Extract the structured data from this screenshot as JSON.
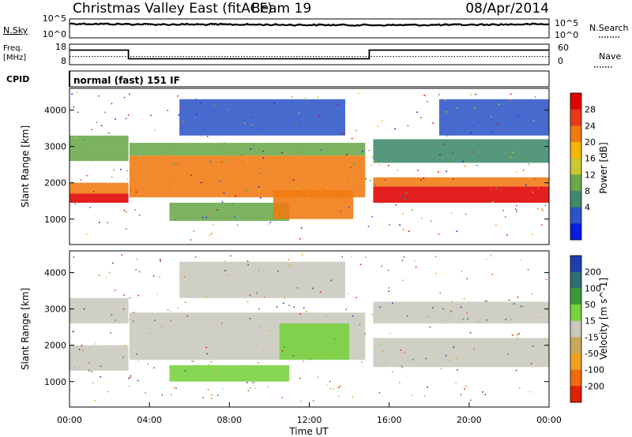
{
  "header": {
    "station": "Christmas Valley East (fitACF)",
    "beam": "Beam 19",
    "date": "08/Apr/2014"
  },
  "top_panels": {
    "nsky_label": "N.Sky",
    "nsearch_label": "N.Search",
    "noise_ticks_left": [
      "10^5",
      "10^0"
    ],
    "noise_ticks_right": [
      "10^5",
      "10^0"
    ],
    "freq_label_line1": "Freq.",
    "freq_label_line2": "[MHz]",
    "freq_ticks": [
      "18",
      "8"
    ],
    "nave_label": "Nave",
    "nave_ticks": [
      "60",
      "0"
    ],
    "cpid_label": "CPID",
    "cpid_value": "normal (fast) 151 IF"
  },
  "colors": {
    "power": [
      "#0a1ee0",
      "#2d55c8",
      "#3f8a6a",
      "#6aa84a",
      "#c8c832",
      "#f4b400",
      "#f07a10",
      "#e83a18",
      "#e00000"
    ],
    "velocity": [
      "#1f3fb0",
      "#2e6e6e",
      "#3a9a3a",
      "#78d23c",
      "#c8c8be",
      "#c9a85a",
      "#f0a020",
      "#f06a10",
      "#e02000"
    ]
  },
  "chart_data": [
    {
      "type": "line",
      "title": "N.Sky / N.Search",
      "x": [
        "00:00",
        "04:00",
        "08:00",
        "12:00",
        "16:00",
        "20:00",
        "00:00"
      ],
      "series": [
        {
          "name": "N.Sky",
          "values": [
            10000,
            6000,
            5500,
            4000,
            3500,
            4500,
            7000
          ]
        },
        {
          "name": "N.Search",
          "values": [
            6000,
            4000,
            3500,
            3000,
            2500,
            3000,
            5000
          ]
        }
      ],
      "yscale": "log"
    },
    {
      "type": "line",
      "title": "Freq. / Nave",
      "xlabel": "",
      "series": [
        {
          "name": "Freq.",
          "x": [
            0.0,
            2.95,
            2.95,
            15.0,
            15.0,
            24.0
          ],
          "values": [
            15.5,
            15.5,
            10.5,
            10.5,
            15.5,
            15.5
          ]
        },
        {
          "name": "Nave",
          "x": [
            0,
            24
          ],
          "values": [
            23,
            23
          ]
        }
      ],
      "y_ranges": {
        "freq": [
          8,
          18
        ],
        "nave": [
          0,
          60
        ]
      }
    },
    {
      "type": "heatmap",
      "quantity": "Power",
      "ylabel": "Slant Range [km]",
      "colorbar_label": "Power [dB]",
      "colorbar_ticks": [
        "28",
        "24",
        "20",
        "16",
        "12",
        "8",
        "4"
      ],
      "xlim": [
        0,
        24
      ],
      "ylim": [
        300,
        4600
      ],
      "yticks": [
        1000,
        2000,
        3000,
        4000
      ],
      "bands": [
        {
          "t0": 0.0,
          "t1": 2.95,
          "r0": 1450,
          "r1": 1700,
          "level": 8
        },
        {
          "t0": 0.0,
          "t1": 2.95,
          "r0": 1700,
          "r1": 2000,
          "level": 6
        },
        {
          "t0": 0.0,
          "t1": 2.95,
          "r0": 2600,
          "r1": 3300,
          "level": 3
        },
        {
          "t0": 3.0,
          "t1": 14.8,
          "r0": 1600,
          "r1": 2750,
          "level": 6
        },
        {
          "t0": 3.0,
          "t1": 14.8,
          "r0": 2750,
          "r1": 3100,
          "level": 3
        },
        {
          "t0": 5.5,
          "t1": 13.8,
          "r0": 3300,
          "r1": 4300,
          "level": 1
        },
        {
          "t0": 5.0,
          "t1": 11.0,
          "r0": 950,
          "r1": 1450,
          "level": 3
        },
        {
          "t0": 10.2,
          "t1": 14.2,
          "r0": 1000,
          "r1": 1800,
          "level": 6
        },
        {
          "t0": 15.2,
          "t1": 24.0,
          "r0": 1450,
          "r1": 1900,
          "level": 8
        },
        {
          "t0": 15.2,
          "t1": 24.0,
          "r0": 1900,
          "r1": 2150,
          "level": 6
        },
        {
          "t0": 15.2,
          "t1": 24.0,
          "r0": 2550,
          "r1": 3200,
          "level": 2
        },
        {
          "t0": 18.5,
          "t1": 24.0,
          "r0": 3300,
          "r1": 4300,
          "level": 1
        }
      ]
    },
    {
      "type": "heatmap",
      "quantity": "Velocity",
      "ylabel": "Slant Range [km]",
      "xlabel": "Time UT",
      "colorbar_label": "Velocity [m s^-1]",
      "colorbar_ticks": [
        "200",
        "100",
        "50",
        "15",
        "-15",
        "-50",
        "-100",
        "-200"
      ],
      "xlim": [
        0,
        24
      ],
      "ylim": [
        300,
        4600
      ],
      "xtick_labels": [
        "00:00",
        "04:00",
        "08:00",
        "12:00",
        "16:00",
        "20:00",
        "00:00"
      ],
      "yticks": [
        1000,
        2000,
        3000,
        4000
      ],
      "bands": [
        {
          "t0": 0.0,
          "t1": 2.95,
          "r0": 1300,
          "r1": 2000,
          "level": 4
        },
        {
          "t0": 0.0,
          "t1": 2.95,
          "r0": 2600,
          "r1": 3300,
          "level": 4
        },
        {
          "t0": 3.0,
          "t1": 14.8,
          "r0": 1600,
          "r1": 2900,
          "level": 4
        },
        {
          "t0": 5.5,
          "t1": 13.8,
          "r0": 3300,
          "r1": 4300,
          "level": 4
        },
        {
          "t0": 5.0,
          "t1": 11.0,
          "r0": 1000,
          "r1": 1450,
          "level": 3
        },
        {
          "t0": 10.5,
          "t1": 14.0,
          "r0": 1600,
          "r1": 2600,
          "level": 3
        },
        {
          "t0": 15.2,
          "t1": 24.0,
          "r0": 1400,
          "r1": 2200,
          "level": 4
        },
        {
          "t0": 15.2,
          "t1": 24.0,
          "r0": 2600,
          "r1": 3200,
          "level": 4
        }
      ]
    }
  ]
}
